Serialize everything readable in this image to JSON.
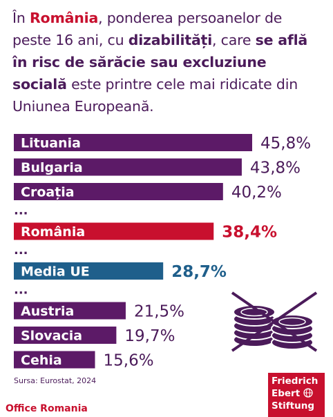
{
  "headline": {
    "t1": "În ",
    "t2": "România",
    "t3": ", ponderea persoanelor de peste 16 ani, cu ",
    "t4": "dizabilități",
    "t5": ", care ",
    "t6": "se află în risc de sărăcie sau excluziune socială",
    "t7": " este printre cele mai ridicate din Uniunea Europeană."
  },
  "chart_data": {
    "type": "bar",
    "orientation": "horizontal",
    "ellipsis": "...",
    "colors": {
      "default": "#5c1a67",
      "romania": "#c8102e",
      "eu": "#1f5f8b"
    },
    "bars": [
      {
        "label": "Lituania",
        "value": 45.8,
        "display": "45,8%",
        "kind": "default",
        "gap_before": false
      },
      {
        "label": "Bulgaria",
        "value": 43.8,
        "display": "43,8%",
        "kind": "default",
        "gap_before": false
      },
      {
        "label": "Croația",
        "value": 40.2,
        "display": "40,2%",
        "kind": "default",
        "gap_before": false
      },
      {
        "label": "România",
        "value": 38.4,
        "display": "38,4%",
        "kind": "romania",
        "gap_before": true
      },
      {
        "label": "Media UE",
        "value": 28.7,
        "display": "28,7%",
        "kind": "eu",
        "gap_before": true
      },
      {
        "label": "Austria",
        "value": 21.5,
        "display": "21,5%",
        "kind": "default",
        "gap_before": true
      },
      {
        "label": "Slovacia",
        "value": 19.7,
        "display": "19,7%",
        "kind": "default",
        "gap_before": false
      },
      {
        "label": "Cehia",
        "value": 15.6,
        "display": "15,6%",
        "kind": "default",
        "gap_before": false
      }
    ]
  },
  "illustration_icon": "crossed-out-coins-icon",
  "source": "Sursa: Eurostat, 2024",
  "logo": {
    "line1": "Friedrich",
    "line2": "Ebert",
    "line3": "Stiftung",
    "icon": "globe-icon"
  },
  "footer": "Office Romania"
}
